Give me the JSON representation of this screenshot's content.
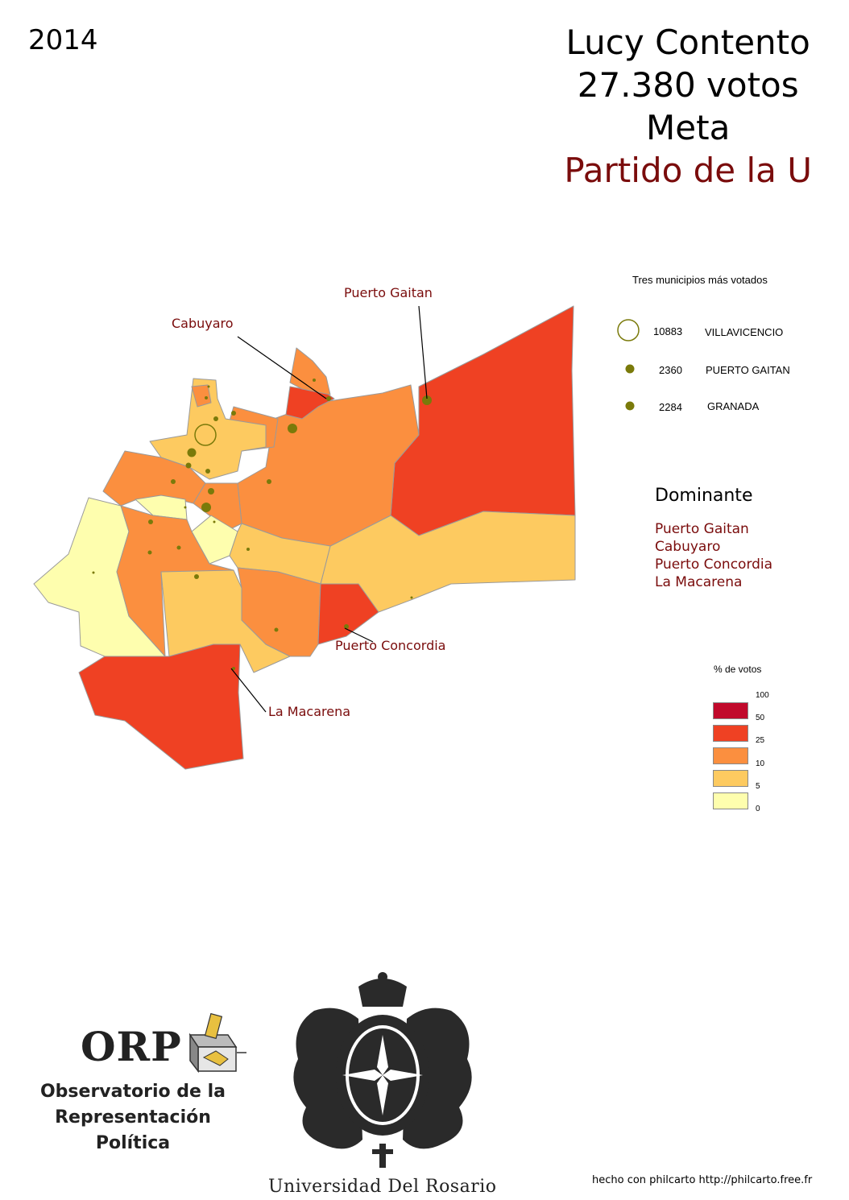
{
  "year": "2014",
  "title": {
    "candidate": "Lucy Contento",
    "votes": "27.380 votos",
    "department": "Meta",
    "party": "Partido de la U"
  },
  "top_municipalities": {
    "title": "Tres municipios más votados",
    "items": [
      {
        "value": "10883",
        "name": "VILLAVICENCIO"
      },
      {
        "value": "2360",
        "name": "PUERTO GAITAN"
      },
      {
        "value": "2284",
        "name": "GRANADA"
      }
    ]
  },
  "dominant": {
    "title": "Dominante",
    "items": [
      "Puerto Gaitan",
      "Cabuyaro",
      "Puerto Concordia",
      "La Macarena"
    ]
  },
  "map_labels": {
    "puerto_gaitan": "Puerto Gaitan",
    "cabuyaro": "Cabuyaro",
    "puerto_concordia": "Puerto Concordia",
    "la_macarena": "La Macarena"
  },
  "legend": {
    "title": "% de votos",
    "ticks": [
      "100",
      "50",
      "25",
      "10",
      "5",
      "0"
    ],
    "colors": [
      "#c1092b",
      "#ef4123",
      "#fb8f3f",
      "#fdca60",
      "#fefeae"
    ]
  },
  "colors": {
    "accent": "#7a0c0c",
    "dot": "#7a7a0a"
  },
  "logos": {
    "orp_title": "ORP",
    "orp_subtitle_1": "Observatorio de la",
    "orp_subtitle_2": "Representación Política",
    "university": "Universidad Del Rosario"
  },
  "credit": "hecho con philcarto http://philcarto.free.fr"
}
